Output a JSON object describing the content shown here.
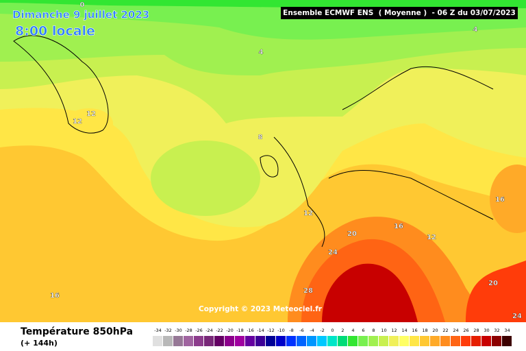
{
  "header": {
    "date": "Dimanche 9 juillet 2023",
    "time": "8:00 locale",
    "model": "Ensemble ECMWF ENS  ( Moyenne )  - 06 Z du 03/07/2023"
  },
  "copyright": "Copyright © 2023 Meteociel.fr",
  "footer": {
    "title": "Température 850hPa",
    "lead": "(+ 144h)"
  },
  "contour_labels": [
    0,
    4,
    4,
    8,
    12,
    12,
    12,
    16,
    16,
    12,
    20,
    24,
    28,
    20,
    24,
    16
  ],
  "scale": {
    "values": [
      -34,
      -32,
      -30,
      -28,
      -26,
      -24,
      -22,
      -20,
      -18,
      -16,
      -14,
      -12,
      -10,
      -8,
      -6,
      -4,
      -2,
      0,
      2,
      4,
      6,
      8,
      10,
      12,
      14,
      16,
      18,
      20,
      22,
      24,
      26,
      28,
      30,
      32,
      34
    ],
    "colors": [
      "#e0e0e0",
      "#b8b8b8",
      "#967896",
      "#a064a0",
      "#8c3c8c",
      "#782878",
      "#640064",
      "#8c008c",
      "#a000a0",
      "#6400a0",
      "#3c0096",
      "#000096",
      "#0000c8",
      "#0032ff",
      "#0064ff",
      "#0096ff",
      "#00c8ff",
      "#00e6c8",
      "#00dc78",
      "#32e632",
      "#78f050",
      "#a0f050",
      "#c8f050",
      "#f0f05a",
      "#ffff64",
      "#ffe646",
      "#ffc832",
      "#ffaa28",
      "#ff8c1e",
      "#ff6414",
      "#ff3c0a",
      "#e61e00",
      "#c80000",
      "#8c0000",
      "#3c0000"
    ]
  }
}
